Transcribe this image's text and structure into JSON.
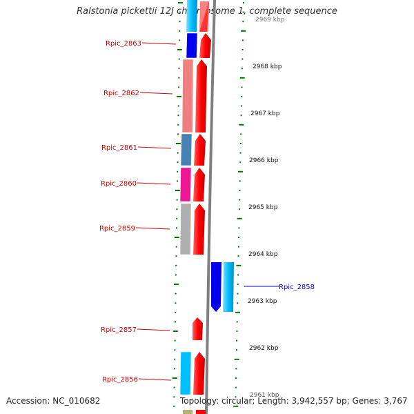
{
  "title": "Ralstonia pickettii 12J chromosome 1, complete sequence",
  "footer": {
    "accession": "Accession: NC_010682",
    "stats": "Topology: circular; Length: 3,942,557 bp; Genes: 3,767"
  },
  "ticks": [
    {
      "label": "2969 kbp"
    },
    {
      "label": "2968 kbp"
    },
    {
      "label": "2967 kbp"
    },
    {
      "label": "2966 kbp"
    },
    {
      "label": "2965 kbp"
    },
    {
      "label": "2964 kbp"
    },
    {
      "label": "2963 kbp"
    },
    {
      "label": "2962 kbp"
    },
    {
      "label": "2961 kbp"
    }
  ],
  "genes": [
    {
      "label": "Rpic_2863",
      "strand": "reverse",
      "color": "#0000ee"
    },
    {
      "label": "Rpic_2862",
      "strand": "reverse",
      "color": "#f08080"
    },
    {
      "label": "Rpic_2861",
      "strand": "reverse",
      "color": "#4682b4"
    },
    {
      "label": "Rpic_2860",
      "strand": "reverse",
      "color": "#ee1493"
    },
    {
      "label": "Rpic_2859",
      "strand": "reverse",
      "color": "#b0b0b0"
    },
    {
      "label": "Rpic_2858",
      "strand": "forward",
      "color": "#0000ee"
    },
    {
      "label": "Rpic_2857",
      "strand": "reverse",
      "color": "#ff0000"
    },
    {
      "label": "Rpic_2856",
      "strand": "reverse",
      "color": "#00bfff"
    }
  ],
  "colors": {
    "cds": "#ff0000",
    "reverse_label": "#cc0000",
    "forward_label": "#0000cc",
    "tick": "#007700",
    "backbone": "#808080"
  }
}
